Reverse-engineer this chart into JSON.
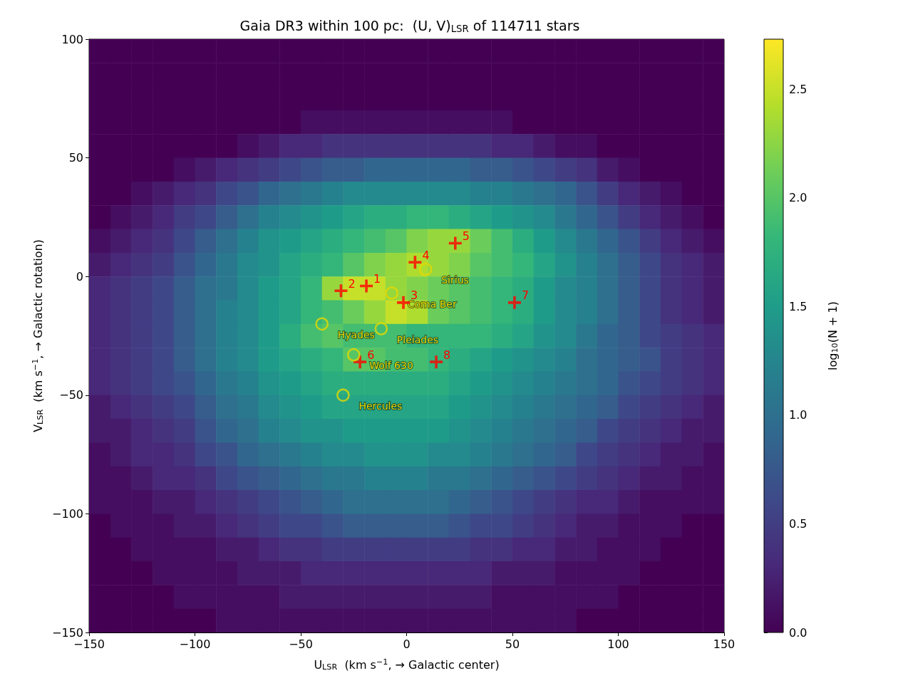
{
  "chart_data": {
    "type": "heatmap",
    "title": "Gaia DR3 within 100 pc:  (U, V)$_{LSR}$ of 114711 stars",
    "xlabel": "U$_{LSR}$  (km s$^{−1}$, → Galactic center)",
    "ylabel": "V$_{LSR}$  (km s$^{−1}$, → Galactic rotation)",
    "clabel": "log$_{10}$(N + 1)",
    "xlim": [
      -150,
      150
    ],
    "xticks": [
      {
        "value": -150,
        "label": "−150"
      },
      {
        "value": -100,
        "label": "−100"
      },
      {
        "value": -50,
        "label": "−50"
      },
      0,
      50,
      100,
      150
    ],
    "ylim": [
      -150,
      100
    ],
    "yticks": [
      {
        "value": -150,
        "label": "−150"
      },
      {
        "value": -100,
        "label": "−100"
      },
      {
        "value": -50,
        "label": "−50"
      },
      0,
      50,
      100
    ],
    "clim": [
      0,
      2.73
    ],
    "cticks": [
      {
        "value": 0,
        "label": "0.0"
      },
      0.5,
      {
        "value": 1,
        "label": "1.0"
      },
      1.5,
      {
        "value": 2,
        "label": "2.0"
      },
      2.5
    ],
    "annotations": [
      {
        "text": "1",
        "x": -19,
        "y": -4
      },
      {
        "text": "2",
        "x": -31,
        "y": -6
      },
      {
        "text": "3",
        "x": -1.5,
        "y": -11
      },
      {
        "text": "4",
        "x": 4,
        "y": 6
      },
      {
        "text": "5",
        "x": 23,
        "y": 14
      },
      {
        "text": "6",
        "x": -22,
        "y": -36
      },
      {
        "text": "7",
        "x": 51,
        "y": -11
      },
      {
        "text": "8",
        "x": 14,
        "y": -36
      },
      {
        "text": "Sirius",
        "x": 9,
        "y": 3
      },
      {
        "text": "Coma Ber",
        "x": -7,
        "y": -7
      },
      {
        "text": "Hyades",
        "x": -40,
        "y": -20
      },
      {
        "text": "Pleiades",
        "x": -12,
        "y": -22
      },
      {
        "text": "Wolf 630",
        "x": -25,
        "y": -33
      },
      {
        "text": "Hercules",
        "x": -30,
        "y": -50
      }
    ],
    "cells": [
      [
        0,
        0,
        0,
        0,
        0,
        0,
        0,
        0,
        0,
        0,
        0,
        0,
        0,
        0,
        0,
        0,
        0,
        0,
        0,
        0,
        0,
        0,
        0,
        0,
        0,
        0,
        0,
        0,
        0,
        0
      ],
      [
        0,
        0,
        0,
        0,
        0,
        0,
        0,
        0,
        0,
        0,
        0,
        0,
        0,
        0,
        0,
        0,
        0,
        0,
        0,
        0,
        0,
        0,
        0,
        0,
        0,
        0,
        0,
        0,
        0,
        0
      ],
      [
        0,
        0,
        0,
        0,
        0,
        0,
        0,
        0,
        0,
        0,
        0,
        0,
        0,
        0,
        0,
        0,
        0,
        0,
        0,
        0,
        0,
        0,
        0,
        0,
        0,
        0,
        0,
        0,
        0,
        0
      ],
      [
        0,
        0,
        0,
        0,
        0,
        0,
        0,
        0,
        0,
        0,
        0.1,
        0.1,
        0.1,
        0.1,
        0.1,
        0.1,
        0.1,
        0.1,
        0.1,
        0.1,
        0,
        0,
        0,
        0,
        0,
        0,
        0,
        0,
        0,
        0
      ],
      [
        0,
        0,
        0,
        0,
        0,
        0,
        0,
        0.1,
        0.2,
        0.3,
        0.3,
        0.4,
        0.4,
        0.4,
        0.4,
        0.4,
        0.4,
        0.4,
        0.4,
        0.3,
        0.3,
        0.2,
        0.1,
        0.1,
        0,
        0,
        0,
        0,
        0,
        0
      ],
      [
        0,
        0,
        0,
        0,
        0.1,
        0.2,
        0.3,
        0.4,
        0.5,
        0.6,
        0.7,
        0.8,
        0.8,
        0.9,
        0.9,
        0.9,
        0.9,
        0.9,
        0.8,
        0.8,
        0.7,
        0.6,
        0.5,
        0.4,
        0.2,
        0.1,
        0,
        0,
        0,
        0
      ],
      [
        0,
        0,
        0.1,
        0.2,
        0.3,
        0.4,
        0.6,
        0.7,
        0.9,
        1.0,
        1.1,
        1.2,
        1.3,
        1.3,
        1.3,
        1.3,
        1.3,
        1.3,
        1.2,
        1.2,
        1.1,
        1.0,
        0.9,
        0.7,
        0.5,
        0.3,
        0.2,
        0.1,
        0,
        0
      ],
      [
        0,
        0.1,
        0.2,
        0.3,
        0.5,
        0.6,
        0.8,
        1.0,
        1.2,
        1.3,
        1.4,
        1.5,
        1.6,
        1.7,
        1.7,
        1.8,
        1.8,
        1.7,
        1.6,
        1.5,
        1.4,
        1.3,
        1.1,
        0.9,
        0.7,
        0.5,
        0.3,
        0.2,
        0.1,
        0
      ],
      [
        0.1,
        0.2,
        0.3,
        0.4,
        0.6,
        0.8,
        1.0,
        1.2,
        1.4,
        1.5,
        1.6,
        1.7,
        1.8,
        1.9,
        2.0,
        2.2,
        2.3,
        2.3,
        2.1,
        1.9,
        1.7,
        1.5,
        1.3,
        1.1,
        0.9,
        0.7,
        0.5,
        0.3,
        0.2,
        0.1
      ],
      [
        0.2,
        0.3,
        0.4,
        0.5,
        0.7,
        0.9,
        1.1,
        1.3,
        1.4,
        1.6,
        1.7,
        1.8,
        2.0,
        2.2,
        2.3,
        2.4,
        2.3,
        2.2,
        2.0,
        1.9,
        1.8,
        1.6,
        1.4,
        1.2,
        1.0,
        0.8,
        0.6,
        0.4,
        0.3,
        0.2
      ],
      [
        0.3,
        0.4,
        0.5,
        0.6,
        0.8,
        1.0,
        1.1,
        1.3,
        1.5,
        1.6,
        1.8,
        2.3,
        2.5,
        2.5,
        2.3,
        2.2,
        2.1,
        2.0,
        1.9,
        1.8,
        1.7,
        1.5,
        1.3,
        1.2,
        1.0,
        0.8,
        0.6,
        0.4,
        0.3,
        0.2
      ],
      [
        0.3,
        0.4,
        0.5,
        0.6,
        0.8,
        1.0,
        1.2,
        1.3,
        1.5,
        1.6,
        1.8,
        1.9,
        2.1,
        2.3,
        2.5,
        2.4,
        2.1,
        2.0,
        1.9,
        1.8,
        1.7,
        1.5,
        1.3,
        1.2,
        1.0,
        0.8,
        0.6,
        0.4,
        0.3,
        0.2
      ],
      [
        0.3,
        0.4,
        0.5,
        0.6,
        0.8,
        1.0,
        1.2,
        1.3,
        1.5,
        1.7,
        1.9,
        2.0,
        1.9,
        1.9,
        1.9,
        1.8,
        1.8,
        1.8,
        1.8,
        1.7,
        1.6,
        1.4,
        1.3,
        1.1,
        0.9,
        0.8,
        0.6,
        0.5,
        0.4,
        0.3
      ],
      [
        0.3,
        0.4,
        0.5,
        0.6,
        0.8,
        1.0,
        1.2,
        1.3,
        1.5,
        1.6,
        1.7,
        1.8,
        2.0,
        2.0,
        1.9,
        1.9,
        1.8,
        1.7,
        1.6,
        1.5,
        1.4,
        1.3,
        1.2,
        1.0,
        0.9,
        0.8,
        0.7,
        0.5,
        0.4,
        0.3
      ],
      [
        0.3,
        0.4,
        0.5,
        0.6,
        0.7,
        0.9,
        1.1,
        1.2,
        1.4,
        1.5,
        1.6,
        1.7,
        1.7,
        1.7,
        1.7,
        1.7,
        1.7,
        1.6,
        1.5,
        1.4,
        1.3,
        1.2,
        1.1,
        1.0,
        0.9,
        0.7,
        0.6,
        0.5,
        0.4,
        0.3
      ],
      [
        0.2,
        0.3,
        0.4,
        0.5,
        0.6,
        0.8,
        1.0,
        1.1,
        1.3,
        1.4,
        1.5,
        1.6,
        1.6,
        1.6,
        1.6,
        1.6,
        1.6,
        1.5,
        1.4,
        1.3,
        1.2,
        1.1,
        1.0,
        0.9,
        0.8,
        0.6,
        0.5,
        0.4,
        0.3,
        0.2
      ],
      [
        0.2,
        0.2,
        0.3,
        0.4,
        0.5,
        0.7,
        0.9,
        1.0,
        1.2,
        1.3,
        1.4,
        1.4,
        1.5,
        1.5,
        1.5,
        1.5,
        1.5,
        1.4,
        1.3,
        1.2,
        1.1,
        1.0,
        0.9,
        0.8,
        0.6,
        0.5,
        0.4,
        0.3,
        0.2,
        0.2
      ],
      [
        0.1,
        0.2,
        0.3,
        0.3,
        0.4,
        0.6,
        0.7,
        0.9,
        1.0,
        1.1,
        1.2,
        1.3,
        1.3,
        1.4,
        1.4,
        1.4,
        1.3,
        1.3,
        1.2,
        1.1,
        1.0,
        0.9,
        0.8,
        0.6,
        0.5,
        0.4,
        0.3,
        0.2,
        0.2,
        0.1
      ],
      [
        0.1,
        0.1,
        0.2,
        0.3,
        0.3,
        0.4,
        0.6,
        0.7,
        0.8,
        0.9,
        1.0,
        1.1,
        1.1,
        1.2,
        1.2,
        1.2,
        1.1,
        1.1,
        1.0,
        0.9,
        0.8,
        0.7,
        0.6,
        0.5,
        0.4,
        0.3,
        0.2,
        0.2,
        0.1,
        0.1
      ],
      [
        0.1,
        0.1,
        0.1,
        0.2,
        0.2,
        0.3,
        0.4,
        0.5,
        0.6,
        0.7,
        0.8,
        0.9,
        1.0,
        1.0,
        1.0,
        1.0,
        1.0,
        0.9,
        0.8,
        0.7,
        0.6,
        0.5,
        0.4,
        0.3,
        0.3,
        0.2,
        0.1,
        0.1,
        0.1,
        0.1
      ],
      [
        0,
        0.1,
        0.1,
        0.1,
        0.2,
        0.2,
        0.3,
        0.4,
        0.5,
        0.6,
        0.6,
        0.7,
        0.8,
        0.8,
        0.8,
        0.8,
        0.8,
        0.7,
        0.6,
        0.6,
        0.5,
        0.4,
        0.3,
        0.2,
        0.2,
        0.1,
        0.1,
        0.1,
        0,
        0
      ],
      [
        0,
        0,
        0.1,
        0.1,
        0.1,
        0.1,
        0.2,
        0.2,
        0.3,
        0.4,
        0.4,
        0.5,
        0.5,
        0.5,
        0.5,
        0.5,
        0.5,
        0.5,
        0.4,
        0.4,
        0.3,
        0.3,
        0.2,
        0.2,
        0.1,
        0.1,
        0.1,
        0,
        0,
        0
      ],
      [
        0,
        0,
        0,
        0.1,
        0.1,
        0.1,
        0.1,
        0.2,
        0.2,
        0.2,
        0.3,
        0.3,
        0.3,
        0.3,
        0.3,
        0.3,
        0.3,
        0.3,
        0.3,
        0.2,
        0.2,
        0.2,
        0.1,
        0.1,
        0.1,
        0.1,
        0,
        0,
        0,
        0
      ],
      [
        0,
        0,
        0,
        0,
        0.1,
        0.1,
        0.1,
        0.1,
        0.1,
        0.2,
        0.2,
        0.2,
        0.2,
        0.2,
        0.2,
        0.2,
        0.2,
        0.2,
        0.2,
        0.1,
        0.1,
        0.1,
        0.1,
        0.1,
        0.1,
        0,
        0,
        0,
        0,
        0
      ],
      [
        0,
        0,
        0,
        0,
        0,
        0,
        0.1,
        0.1,
        0.1,
        0.1,
        0.1,
        0.1,
        0.1,
        0.1,
        0.1,
        0.1,
        0.1,
        0.1,
        0.1,
        0.1,
        0.1,
        0.1,
        0.1,
        0,
        0,
        0,
        0,
        0,
        0,
        0
      ]
    ],
    "series": [
      {
        "type": "scatter",
        "marker": "cross",
        "color": "#ff0000",
        "x": [
          -19,
          -31,
          -1.5,
          4,
          23,
          -22,
          51,
          14
        ],
        "values": [
          -4,
          -6,
          -11,
          6,
          14,
          -36,
          -11,
          -36
        ]
      },
      {
        "type": "scatter",
        "marker": "circle",
        "color": "#e6d800",
        "x": [
          9,
          -7,
          -40,
          -12,
          -25,
          -30
        ],
        "values": [
          3,
          -7,
          -20,
          -22,
          -33,
          -50
        ]
      }
    ]
  }
}
